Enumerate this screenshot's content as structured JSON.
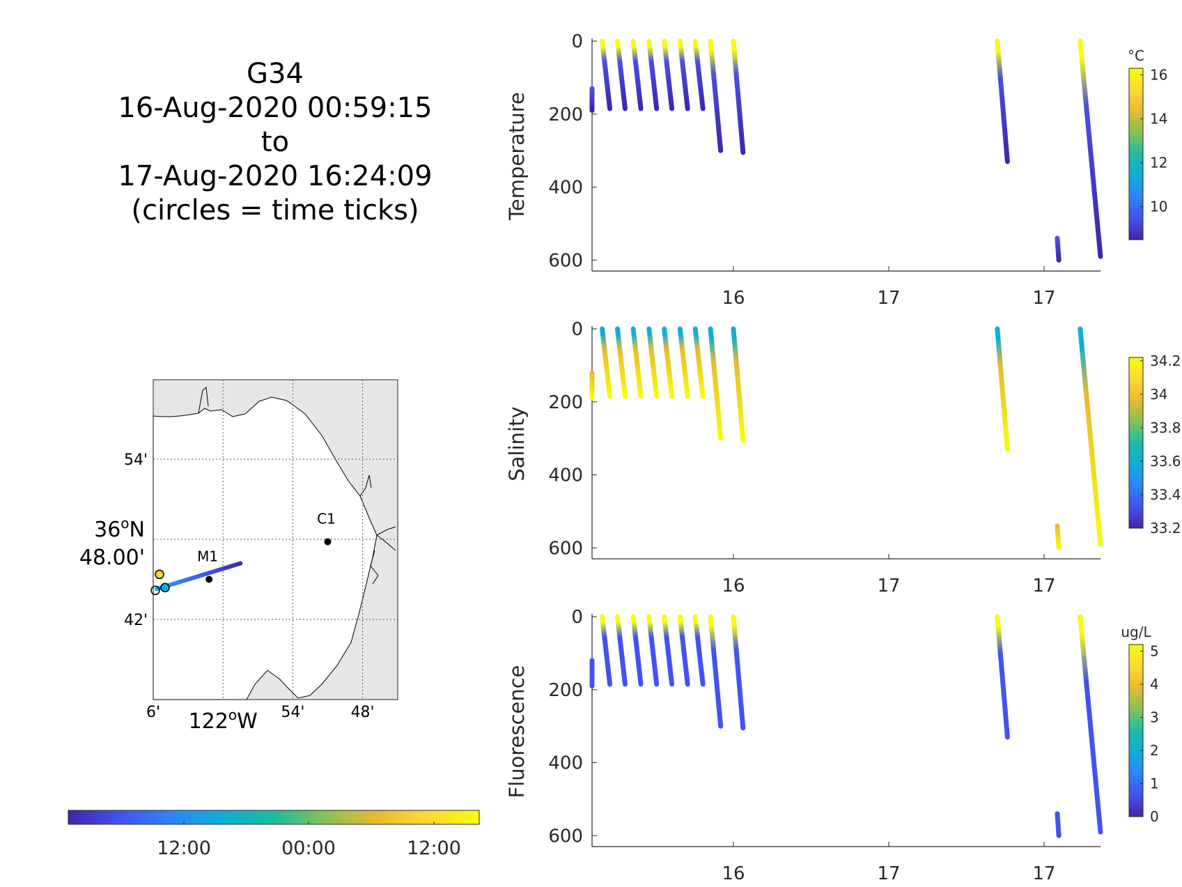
{
  "title_lines": [
    "G34",
    "16-Aug-2020 00:59:15",
    "to",
    "17-Aug-2020 16:24:09",
    "(circles = time ticks)"
  ],
  "palette": [
    "#3e26a8",
    "#4352ef",
    "#2c85f7",
    "#10aed5",
    "#1ebba1",
    "#87c256",
    "#e8ba2f",
    "#fed936",
    "#f9fb0e"
  ],
  "chart_data": [
    {
      "type": "scatter",
      "name": "temperature-section",
      "ylabel": "Temperature",
      "ylim": [
        0,
        630
      ],
      "y_reversed": true,
      "yticks": [
        0,
        200,
        400,
        600
      ],
      "x_tick_labels": [
        "16",
        "17",
        "17"
      ],
      "colorbar": {
        "unit": "°C",
        "range": [
          8.5,
          16.3
        ],
        "ticks": [
          10,
          12,
          14,
          16
        ],
        "tick_labels": [
          "10",
          "12",
          "14",
          "16"
        ]
      },
      "surface_color": "#f9fb0e",
      "deep_color": "#3e26a8",
      "mid_color": "#4a4fe0",
      "casts": [
        {
          "x": [
            0.0,
            0.0
          ],
          "depth": [
            130,
            190
          ]
        },
        {
          "x": [
            0.02,
            0.035
          ],
          "depth": [
            0,
            185
          ]
        },
        {
          "x": [
            0.05,
            0.065
          ],
          "depth": [
            0,
            185
          ]
        },
        {
          "x": [
            0.081,
            0.096
          ],
          "depth": [
            0,
            185
          ]
        },
        {
          "x": [
            0.112,
            0.127
          ],
          "depth": [
            0,
            185
          ]
        },
        {
          "x": [
            0.142,
            0.157
          ],
          "depth": [
            0,
            185
          ]
        },
        {
          "x": [
            0.173,
            0.188
          ],
          "depth": [
            0,
            185
          ]
        },
        {
          "x": [
            0.203,
            0.218
          ],
          "depth": [
            0,
            185
          ]
        },
        {
          "x": [
            0.233,
            0.253
          ],
          "depth": [
            0,
            300
          ]
        },
        {
          "x": [
            0.278,
            0.297
          ],
          "depth": [
            0,
            305
          ]
        },
        {
          "x": [
            0.797,
            0.817
          ],
          "depth": [
            0,
            330
          ]
        },
        {
          "x": [
            0.915,
            0.918
          ],
          "depth": [
            540,
            600
          ]
        },
        {
          "x": [
            0.96,
            1.0
          ],
          "depth": [
            0,
            590
          ]
        }
      ]
    },
    {
      "type": "scatter",
      "name": "salinity-section",
      "ylabel": "Salinity",
      "ylim": [
        0,
        630
      ],
      "y_reversed": true,
      "yticks": [
        0,
        200,
        400,
        600
      ],
      "x_tick_labels": [
        "16",
        "17",
        "17"
      ],
      "colorbar": {
        "unit": "",
        "range": [
          33.2,
          34.22
        ],
        "ticks": [
          33.2,
          33.4,
          33.6,
          33.8,
          34,
          34.2
        ],
        "tick_labels": [
          "33.2",
          "33.4",
          "33.6",
          "33.8",
          "34",
          "34.2"
        ]
      },
      "surface_color": "#10aed5",
      "deep_color": "#f9fb0e",
      "mid_color": "#e8ba2f",
      "casts": [
        {
          "x": [
            0.0,
            0.0
          ],
          "depth": [
            120,
            190
          ]
        },
        {
          "x": [
            0.02,
            0.035
          ],
          "depth": [
            0,
            185
          ]
        },
        {
          "x": [
            0.05,
            0.065
          ],
          "depth": [
            0,
            185
          ]
        },
        {
          "x": [
            0.081,
            0.096
          ],
          "depth": [
            0,
            185
          ]
        },
        {
          "x": [
            0.112,
            0.127
          ],
          "depth": [
            0,
            185
          ]
        },
        {
          "x": [
            0.142,
            0.157
          ],
          "depth": [
            0,
            185
          ]
        },
        {
          "x": [
            0.173,
            0.188
          ],
          "depth": [
            0,
            185
          ]
        },
        {
          "x": [
            0.203,
            0.218
          ],
          "depth": [
            0,
            185
          ]
        },
        {
          "x": [
            0.233,
            0.253
          ],
          "depth": [
            0,
            300
          ]
        },
        {
          "x": [
            0.278,
            0.297
          ],
          "depth": [
            0,
            305
          ]
        },
        {
          "x": [
            0.797,
            0.817
          ],
          "depth": [
            0,
            330
          ]
        },
        {
          "x": [
            0.915,
            0.918
          ],
          "depth": [
            540,
            600
          ]
        },
        {
          "x": [
            0.96,
            1.0
          ],
          "depth": [
            0,
            590
          ]
        }
      ]
    },
    {
      "type": "scatter",
      "name": "fluorescence-section",
      "ylabel": "Fluorescence",
      "ylim": [
        0,
        630
      ],
      "y_reversed": true,
      "yticks": [
        0,
        200,
        400,
        600
      ],
      "x_tick_labels": [
        "16",
        "17",
        "17"
      ],
      "colorbar": {
        "unit": "ug/L",
        "range": [
          0,
          5.2
        ],
        "ticks": [
          0,
          1,
          2,
          3,
          4,
          5
        ],
        "tick_labels": [
          "0",
          "1",
          "2",
          "3",
          "4",
          "5"
        ]
      },
      "surface_color": "#f9fb0e",
      "deep_color": "#4352ef",
      "mid_color": "#4352ef",
      "casts": [
        {
          "x": [
            0.0,
            0.0
          ],
          "depth": [
            120,
            190
          ]
        },
        {
          "x": [
            0.02,
            0.035
          ],
          "depth": [
            0,
            185
          ]
        },
        {
          "x": [
            0.05,
            0.065
          ],
          "depth": [
            0,
            185
          ]
        },
        {
          "x": [
            0.081,
            0.096
          ],
          "depth": [
            0,
            185
          ]
        },
        {
          "x": [
            0.112,
            0.127
          ],
          "depth": [
            0,
            185
          ]
        },
        {
          "x": [
            0.142,
            0.157
          ],
          "depth": [
            0,
            185
          ]
        },
        {
          "x": [
            0.173,
            0.188
          ],
          "depth": [
            0,
            185
          ]
        },
        {
          "x": [
            0.203,
            0.218
          ],
          "depth": [
            0,
            185
          ]
        },
        {
          "x": [
            0.233,
            0.253
          ],
          "depth": [
            0,
            300
          ]
        },
        {
          "x": [
            0.278,
            0.297
          ],
          "depth": [
            0,
            305
          ]
        },
        {
          "x": [
            0.797,
            0.817
          ],
          "depth": [
            0,
            330
          ]
        },
        {
          "x": [
            0.915,
            0.918
          ],
          "depth": [
            540,
            600
          ]
        },
        {
          "x": [
            0.96,
            1.0
          ],
          "depth": [
            0,
            590
          ]
        }
      ]
    },
    {
      "type": "map",
      "name": "track-map",
      "lat_ticks": [
        {
          "label": "54'",
          "lat": 36.9
        },
        {
          "label": "36°N 48.00'",
          "lat": 36.8,
          "degree": "36",
          "deg_suffix": "N",
          "minutes": "48.00'"
        },
        {
          "label": "42'",
          "lat": 36.7
        }
      ],
      "lon_ticks": [
        {
          "label": "6'",
          "lon": -122.1
        },
        {
          "label": "122°W",
          "lon": -122.0,
          "degree": "122",
          "deg_suffix": "W"
        },
        {
          "label": "54'",
          "lon": -121.9
        },
        {
          "label": "48'",
          "lon": -121.8
        }
      ],
      "moorings": [
        {
          "name": "M1",
          "lon": -122.02,
          "lat": 36.75
        },
        {
          "name": "C1",
          "lon": -121.85,
          "lat": 36.797
        }
      ],
      "track_start": {
        "lon": -122.095,
        "lat": 36.738
      },
      "track_end": {
        "lon": -121.975,
        "lat": 36.77
      },
      "time_colorbar": {
        "tick_labels": [
          "12:00",
          "00:00",
          "12:00"
        ]
      },
      "land_color": "#e6e6e6"
    }
  ]
}
